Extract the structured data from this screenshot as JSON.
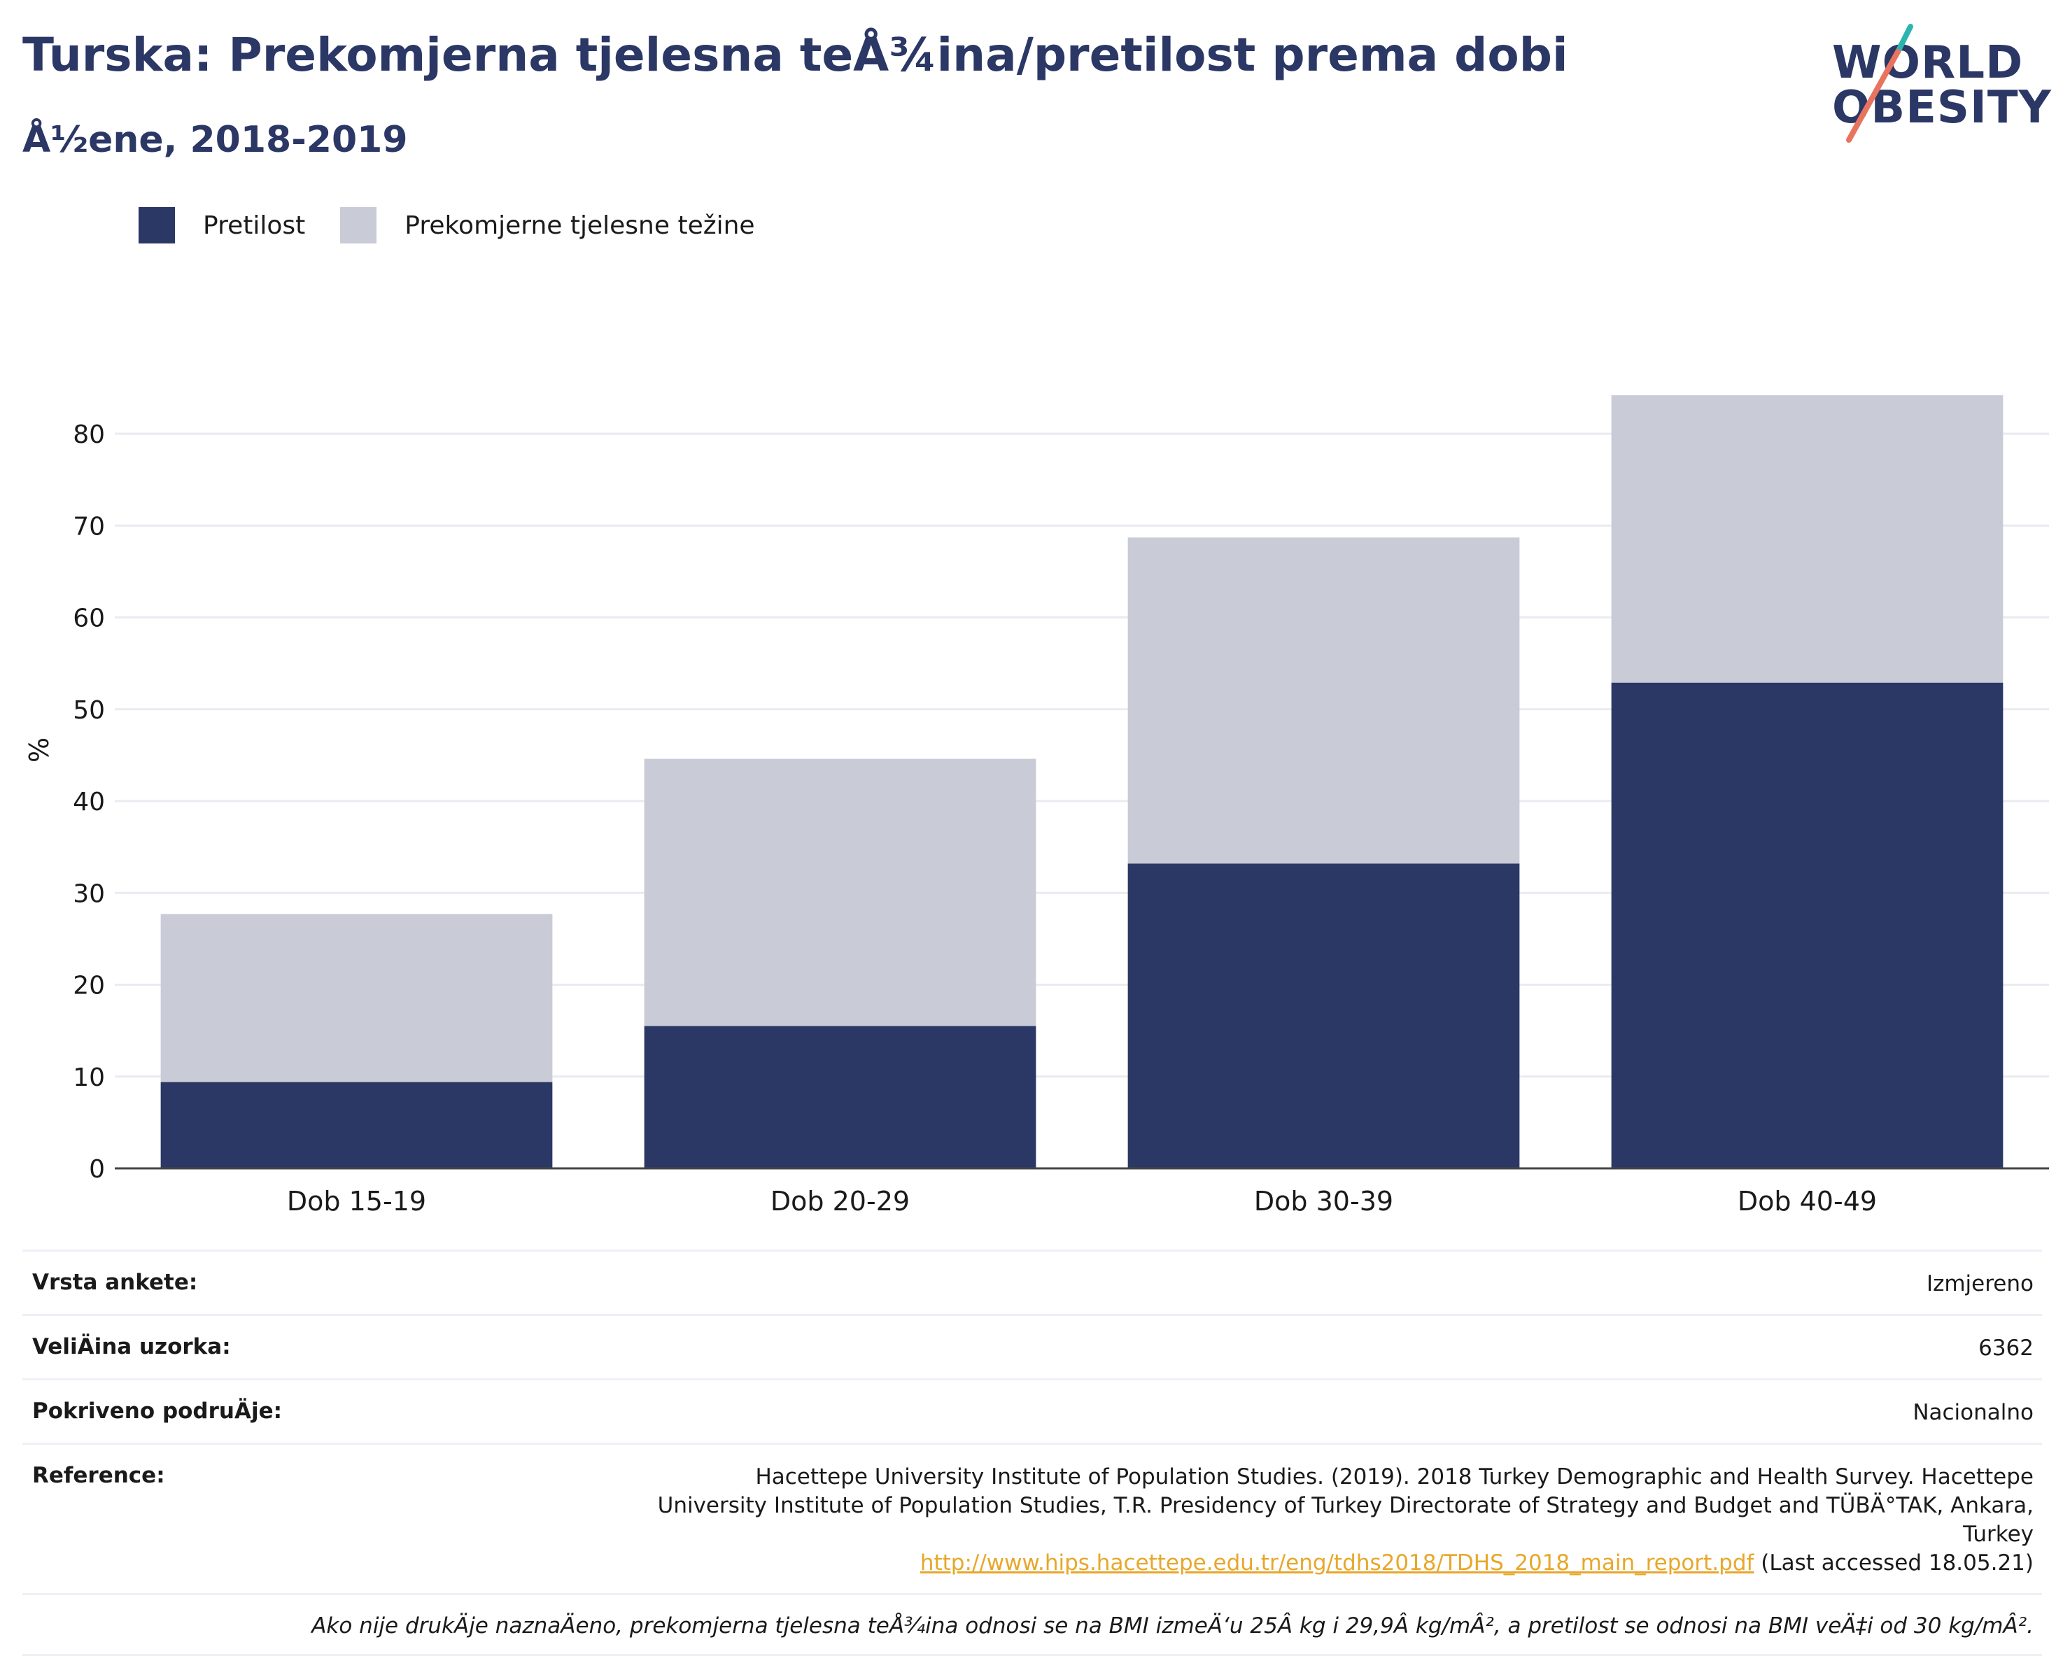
{
  "header": {
    "title": "Turska: Prekomjerna tjelesna teÅ¾ina/pretilost prema dobi",
    "subtitle": "Å½ene, 2018-2019"
  },
  "logo": {
    "line1": "WORLD",
    "line2": "OBESITY",
    "accent_teal": "#2bb5b0",
    "accent_coral": "#e8735f"
  },
  "legend": [
    {
      "label": "Pretilost",
      "color": "#2b3765"
    },
    {
      "label": "Prekomjerne tjelesne težine",
      "color": "#c9cbd7"
    }
  ],
  "chart_data": {
    "type": "bar",
    "stacked": true,
    "categories": [
      "Dob 15-19",
      "Dob 20-29",
      "Dob 30-39",
      "Dob 40-49"
    ],
    "series": [
      {
        "name": "Pretilost",
        "values": [
          9.4,
          15.5,
          33.2,
          52.9
        ],
        "color": "#2b3765"
      },
      {
        "name": "Prekomjerne tjelesne težine",
        "values": [
          18.3,
          29.1,
          35.5,
          31.3
        ],
        "color": "#c9cbd7"
      }
    ],
    "ylabel": "%",
    "ylim": [
      0,
      90
    ],
    "yticks": [
      0,
      10,
      20,
      30,
      40,
      50,
      60,
      70,
      80
    ],
    "grid": true
  },
  "meta": {
    "survey_type_label": "Vrsta ankete:",
    "survey_type_value": "Izmjereno",
    "sample_size_label": "VeliÄ\u001fina uzorka:",
    "sample_size_value": "6362",
    "coverage_label": "Pokriveno podruÄ\u001fje:",
    "coverage_value": "Nacionalno",
    "reference_label": "Reference:",
    "reference_text": "Hacettepe University Institute of Population Studies. (2019). 2018 Turkey Demographic and Health Survey. Hacettepe University Institute of Population Studies, T.R. Presidency of Turkey Directorate of Strategy and Budget and TÜBÄ°TAK, Ankara, Turkey",
    "reference_link": "http://www.hips.hacettepe.edu.tr/eng/tdhs2018/TDHS_2018_main_report.pdf",
    "reference_suffix": " (Last accessed 18.05.21)",
    "note": "Ako nije drukÄ\u001fje naznaÄ\u001feno, prekomjerna tjelesna teÅ¾ina odnosi se na BMI izmeÄ‘u 25Â kg i 29,9Â kg/mÂ², a pretilost se odnosi na BMI veÄ‡i od 30 kg/mÂ²."
  }
}
